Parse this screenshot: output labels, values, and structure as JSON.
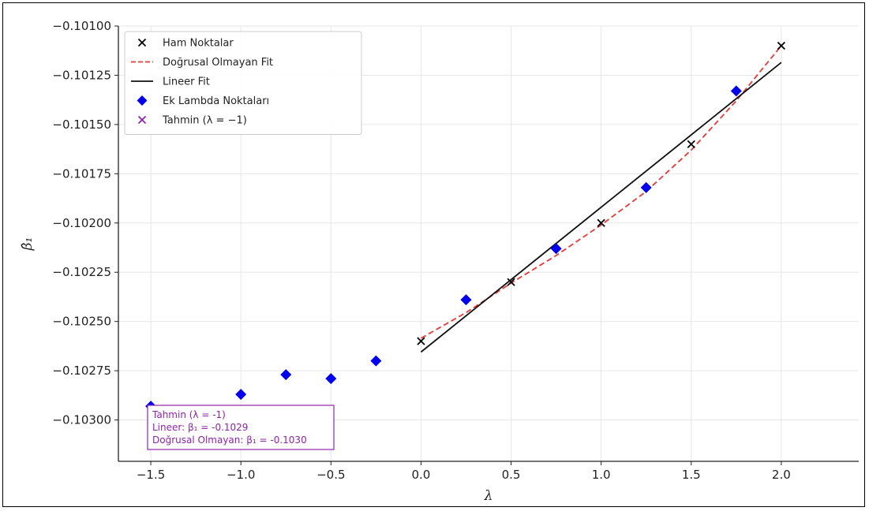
{
  "chart_data": {
    "type": "scatter",
    "title": "",
    "xlabel": "λ",
    "ylabel": "β̂₁",
    "xlim": [
      -1.68,
      2.43
    ],
    "ylim": [
      -0.10321,
      -0.101
    ],
    "xticks": [
      -1.5,
      -1.0,
      -0.5,
      0.0,
      0.5,
      1.0,
      1.5,
      2.0
    ],
    "xtick_labels": [
      "−1.5",
      "−1.0",
      "−0.5",
      "0.0",
      "0.5",
      "1.0",
      "1.5",
      "2.0"
    ],
    "yticks": [
      -0.101,
      -0.10125,
      -0.1015,
      -0.10175,
      -0.102,
      -0.10225,
      -0.1025,
      -0.10275,
      -0.103
    ],
    "ytick_labels": [
      "−0.10100",
      "−0.10125",
      "−0.10150",
      "−0.10175",
      "−0.10200",
      "−0.10225",
      "−0.10250",
      "−0.10275",
      "−0.10300"
    ],
    "grid": true,
    "legend_position": "top-left",
    "series": [
      {
        "name": "Ham Noktalar",
        "kind": "scatter",
        "marker": "x",
        "color": "#000000",
        "x": [
          0.0,
          0.5,
          1.0,
          1.5,
          2.0
        ],
        "y": [
          -0.1026,
          -0.1023,
          -0.102,
          -0.1016,
          -0.1011
        ]
      },
      {
        "name": "Doğrusal Olmayan Fit",
        "kind": "line",
        "style": "dashed",
        "color": "#e53935",
        "x": [
          0.0,
          0.25,
          0.5,
          0.75,
          1.0,
          1.25,
          1.5,
          1.75,
          2.0
        ],
        "y": [
          -0.102585,
          -0.102455,
          -0.102305,
          -0.102165,
          -0.10201,
          -0.10184,
          -0.10163,
          -0.10138,
          -0.1011
        ]
      },
      {
        "name": "Lineer Fit",
        "kind": "line",
        "style": "solid",
        "color": "#111111",
        "x": [
          0.0,
          2.0
        ],
        "y": [
          -0.102655,
          -0.101185
        ]
      },
      {
        "name": "Ek Lambda Noktaları",
        "kind": "scatter",
        "marker": "diamond",
        "color": "#0000ee",
        "x": [
          -1.5,
          -1.0,
          -0.75,
          -0.5,
          -0.25,
          0.25,
          0.75,
          1.25,
          1.75
        ],
        "y": [
          -0.10293,
          -0.10287,
          -0.10277,
          -0.10279,
          -0.1027,
          -0.10239,
          -0.10213,
          -0.10182,
          -0.10133
        ]
      },
      {
        "name": "Tahmin (λ = −1)",
        "kind": "scatter",
        "marker": "x",
        "color": "#8e24aa",
        "x": [],
        "y": []
      }
    ],
    "annotation": {
      "lines": [
        "Tahmin (λ = -1)",
        "Lineer: β₁ = -0.1029",
        "Doğrusal Olmayan: β₁ = -0.1030"
      ],
      "color": "#8e24aa"
    }
  }
}
